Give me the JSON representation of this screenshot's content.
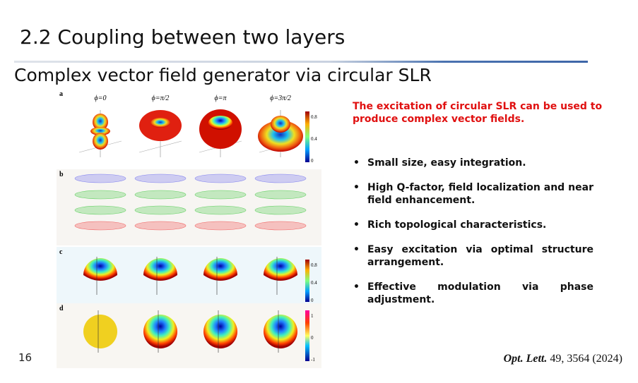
{
  "header": {
    "title": "2.2 Coupling between two layers",
    "subtitle": "Complex vector field generator via circular SLR"
  },
  "figure": {
    "panels": [
      "a",
      "b",
      "c",
      "d"
    ],
    "phases": [
      "ϕ=0",
      "ϕ=π/2",
      "ϕ=π",
      "ϕ=3π/2"
    ],
    "colorbar_a": [
      "0.8",
      "0.4",
      "0"
    ],
    "colorbar_c": [
      "0.8",
      "0.4",
      "0"
    ],
    "colorbar_d": [
      "1",
      "0",
      "-1"
    ]
  },
  "highlight": "The excitation of circular SLR can be used to produce complex vector fields.",
  "bullets": [
    "Small size, easy integration.",
    "High Q-factor, field localization and near field enhancement.",
    "Rich topological characteristics.",
    "Easy excitation via optimal structure arrangement.",
    "Effective modulation via phase adjustment."
  ],
  "citation": {
    "journal": "Opt. Lett.",
    "ref": "49, 3564 (2024)"
  },
  "page_number": "16"
}
